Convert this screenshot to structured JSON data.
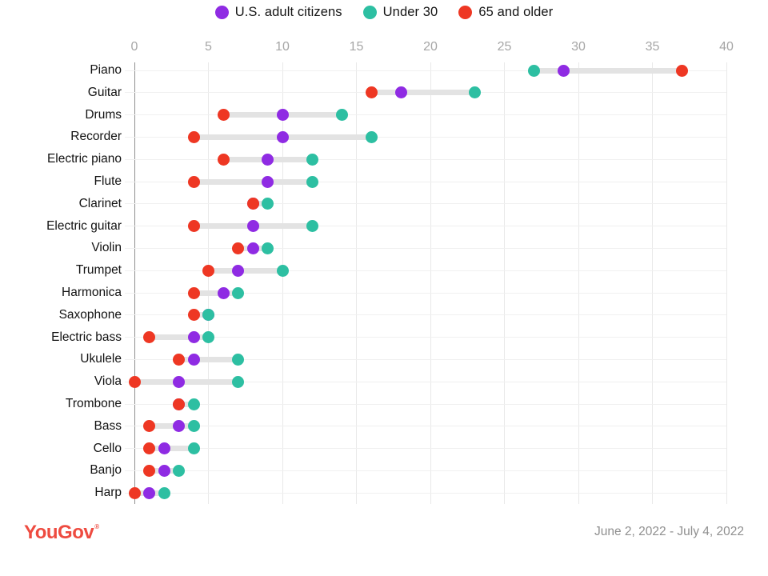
{
  "legend": [
    {
      "label": "U.S. adult citizens",
      "color": "#8F2BE3"
    },
    {
      "label": "Under 30",
      "color": "#2DBFA2"
    },
    {
      "label": "65 and older",
      "color": "#EE3723"
    }
  ],
  "footer": {
    "brand": "YouGov",
    "brand_mark": "®",
    "date_range": "June 2, 2022 - July 4, 2022"
  },
  "colors": {
    "purple": "#8F2BE3",
    "teal": "#2DBFA2",
    "red": "#EE3723",
    "connector": "#e3e3e3",
    "gridline": "#e9e9e9",
    "axis_line": "#909090",
    "tick_text": "#a6a6a6",
    "brand_red": "#ee4b40"
  },
  "chart_data": {
    "type": "scatter",
    "subtype": "dumbbell-dot-plot",
    "title": "",
    "xlabel": "",
    "ylabel": "",
    "xlim": [
      0,
      40
    ],
    "x_ticks": [
      0,
      5,
      10,
      15,
      20,
      25,
      30,
      35,
      40
    ],
    "grid": true,
    "legend_position": "top",
    "categories": [
      "Piano",
      "Guitar",
      "Drums",
      "Recorder",
      "Electric piano",
      "Flute",
      "Clarinet",
      "Electric guitar",
      "Violin",
      "Trumpet",
      "Harmonica",
      "Saxophone",
      "Electric bass",
      "Ukulele",
      "Viola",
      "Trombone",
      "Bass",
      "Cello",
      "Banjo",
      "Harp"
    ],
    "series": [
      {
        "name": "U.S. adult citizens",
        "color": "#8F2BE3",
        "values": [
          29,
          18,
          10,
          10,
          9,
          9,
          8,
          8,
          8,
          7,
          6,
          5,
          4,
          4,
          3,
          3,
          3,
          2,
          2,
          1
        ]
      },
      {
        "name": "Under 30",
        "color": "#2DBFA2",
        "values": [
          27,
          23,
          14,
          16,
          12,
          12,
          9,
          12,
          9,
          10,
          7,
          5,
          5,
          7,
          7,
          4,
          4,
          4,
          3,
          2
        ]
      },
      {
        "name": "65 and older",
        "color": "#EE3723",
        "values": [
          37,
          16,
          6,
          4,
          6,
          4,
          8,
          4,
          7,
          5,
          4,
          4,
          1,
          3,
          0,
          3,
          1,
          1,
          1,
          0
        ]
      }
    ]
  }
}
